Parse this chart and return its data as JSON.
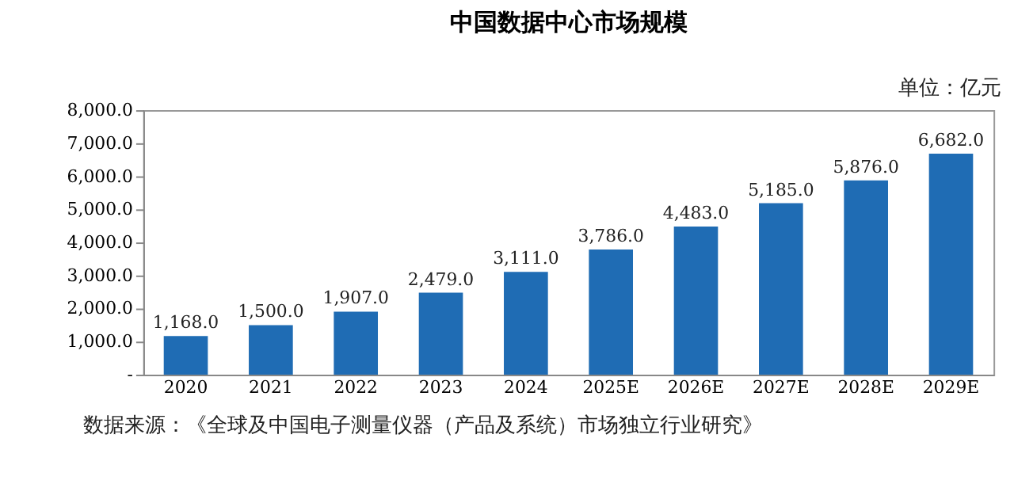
{
  "chart_data": {
    "type": "bar",
    "title": "中国数据中心市场规模",
    "categories": [
      "2020",
      "2021",
      "2022",
      "2023",
      "2024",
      "2025E",
      "2026E",
      "2027E",
      "2028E",
      "2029E"
    ],
    "values": [
      1168,
      1500,
      1907,
      2479,
      3111,
      3786,
      4483,
      5185,
      5876,
      6682
    ],
    "value_labels": [
      "1,168.0",
      "1,500.0",
      "1,907.0",
      "2,479.0",
      "3,111.0",
      "3,786.0",
      "4,483.0",
      "5,185.0",
      "5,876.0",
      "6,682.0"
    ],
    "color": "#1f6cb4",
    "ylim": [
      0,
      8000
    ],
    "yticks": [
      {
        "value": 0,
        "label": "-"
      },
      {
        "value": 1000,
        "label": "1,000.0"
      },
      {
        "value": 2000,
        "label": "2,000.0"
      },
      {
        "value": 3000,
        "label": "3,000.0"
      },
      {
        "value": 4000,
        "label": "4,000.0"
      },
      {
        "value": 5000,
        "label": "5,000.0"
      },
      {
        "value": 6000,
        "label": "6,000.0"
      },
      {
        "value": 7000,
        "label": "7,000.0"
      },
      {
        "value": 8000,
        "label": "8,000.0"
      }
    ],
    "grid": false,
    "annotations": [
      "单位：亿元",
      "数据来源：《全球及中国电子测量仪器（产品及系统）市场独立行业研究》"
    ]
  }
}
